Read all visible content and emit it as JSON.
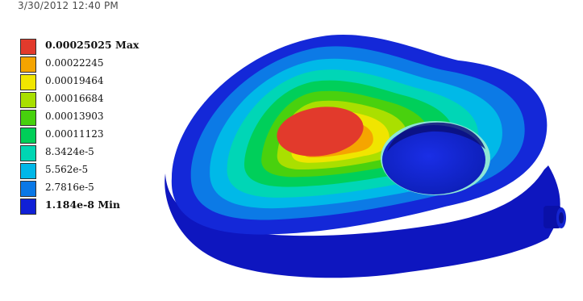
{
  "viewer": {
    "timestamp": "3/30/2012 12:40 PM"
  },
  "legend": {
    "items": [
      {
        "label": "0.00025025 Max",
        "color": "#e23a2c",
        "bold": true
      },
      {
        "label": "0.00022245",
        "color": "#f4a400",
        "bold": false
      },
      {
        "label": "0.00019464",
        "color": "#f1e600",
        "bold": false
      },
      {
        "label": "0.00016684",
        "color": "#a8df00",
        "bold": false
      },
      {
        "label": "0.00013903",
        "color": "#47d10d",
        "bold": false
      },
      {
        "label": "0.00011123",
        "color": "#00cf58",
        "bold": false
      },
      {
        "label": "8.3424e-5",
        "color": "#00d6b3",
        "bold": false
      },
      {
        "label": "5.562e-5",
        "color": "#00b7e8",
        "bold": false
      },
      {
        "label": "2.7816e-5",
        "color": "#0a78e6",
        "bold": false
      },
      {
        "label": "1.184e-8 Min",
        "color": "#1020d6",
        "bold": true
      }
    ]
  }
}
